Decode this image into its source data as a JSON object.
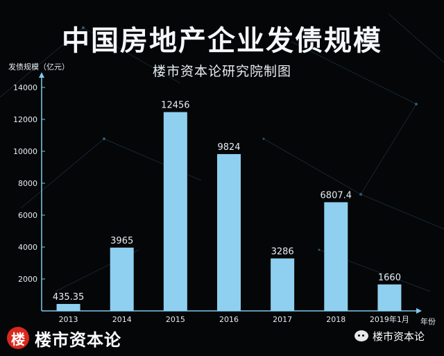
{
  "header": {
    "title": "中国房地产企业发债规模",
    "subtitle": "楼市资本论研究院制图"
  },
  "chart_data": {
    "type": "bar",
    "title": "中国房地产企业发债规模",
    "subtitle": "楼市资本论研究院制图",
    "ylabel": "发债规模（亿元）",
    "xlabel": "年份",
    "categories": [
      "2013",
      "2014",
      "2015",
      "2016",
      "2017",
      "2018",
      "2019年1月"
    ],
    "values": [
      435.35,
      3965,
      12456,
      9824,
      3286,
      6807.4,
      1660
    ],
    "value_labels": [
      "435.35",
      "3965",
      "12456",
      "9824",
      "3286",
      "6807.4",
      "1660"
    ],
    "ylim": [
      0,
      14000
    ],
    "yticks": [
      2000,
      4000,
      6000,
      8000,
      10000,
      12000,
      14000
    ],
    "ytick_labels": [
      "2000",
      "4000",
      "6000",
      "8000",
      "10000",
      "12000",
      "14000"
    ],
    "grid": false,
    "legend": "none"
  },
  "colors": {
    "background": "#050608",
    "bar": "#8fd0f0",
    "axis": "#7ccbee",
    "text": "#e6eef3",
    "badge": "#d9281c"
  },
  "branding": {
    "badge_text": "楼",
    "name_left": "楼市资本论",
    "name_right": "楼市资本论",
    "icon": "wechat-icon"
  }
}
